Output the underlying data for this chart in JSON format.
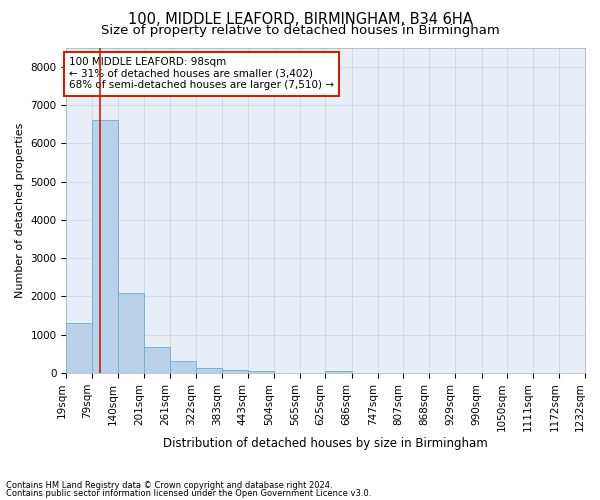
{
  "title1": "100, MIDDLE LEAFORD, BIRMINGHAM, B34 6HA",
  "title2": "Size of property relative to detached houses in Birmingham",
  "xlabel": "Distribution of detached houses by size in Birmingham",
  "ylabel": "Number of detached properties",
  "footnote1": "Contains HM Land Registry data © Crown copyright and database right 2024.",
  "footnote2": "Contains public sector information licensed under the Open Government Licence v3.0.",
  "annotation_line1": "100 MIDDLE LEAFORD: 98sqm",
  "annotation_line2": "← 31% of detached houses are smaller (3,402)",
  "annotation_line3": "68% of semi-detached houses are larger (7,510) →",
  "bar_edges": [
    19,
    79,
    140,
    201,
    261,
    322,
    383,
    443,
    504,
    565,
    625,
    686,
    747,
    807,
    868,
    929,
    990,
    1050,
    1111,
    1172,
    1232
  ],
  "bar_heights": [
    1300,
    6600,
    2080,
    680,
    300,
    130,
    85,
    55,
    0,
    0,
    55,
    0,
    0,
    0,
    0,
    0,
    0,
    0,
    0,
    0
  ],
  "bar_color": "#b8d0e8",
  "bar_edge_color": "#6aaad4",
  "vline_color": "#cc2200",
  "vline_x": 98,
  "ylim": [
    0,
    8500
  ],
  "yticks": [
    0,
    1000,
    2000,
    3000,
    4000,
    5000,
    6000,
    7000,
    8000
  ],
  "grid_color": "#c8d8ec",
  "bg_color": "#e8eef8",
  "annotation_box_edgecolor": "#cc2200",
  "title1_fontsize": 10.5,
  "title2_fontsize": 9.5,
  "xlabel_fontsize": 8.5,
  "ylabel_fontsize": 8,
  "tick_fontsize": 7.5,
  "annotation_fontsize": 7.5
}
